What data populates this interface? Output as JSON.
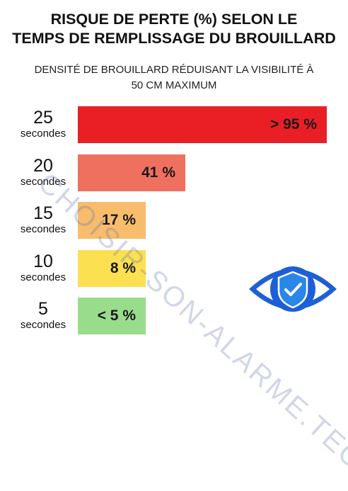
{
  "title_lines": [
    "RISQUE DE PERTE (%) SELON LE",
    "TEMPS DE REMPLISSAGE DU BROUILLARD"
  ],
  "subtitle_lines": [
    "DENSITÉ DE BROUILLARD RÉDUISANT LA VISIBILITÉ À",
    "50 CM MAXIMUM"
  ],
  "watermark": "CHOISIR-SON-ALARME.TECH",
  "chart_data": {
    "type": "bar",
    "orientation": "horizontal",
    "title": "RISQUE DE PERTE (%) SELON LE TEMPS DE REMPLISSAGE DU BROUILLARD",
    "subtitle": "DENSITÉ DE BROUILLARD RÉDUISANT LA VISIBILITÉ À 50 CM MAXIMUM",
    "unit": "secondes",
    "categories": [
      "25",
      "20",
      "15",
      "10",
      "5"
    ],
    "values": [
      95,
      41,
      17,
      8,
      5
    ],
    "value_labels": [
      "> 95 %",
      "41 %",
      "17 %",
      "8 %",
      "< 5 %"
    ],
    "colors": [
      "#ea1f26",
      "#f0705f",
      "#f8bc6d",
      "#fbe052",
      "#98dc8c"
    ],
    "grid": false,
    "legend": "none"
  },
  "colors": {
    "eye_blue": "#1d5fd6",
    "shield_blue": "#2a86e8"
  },
  "icons": [
    "eye-icon",
    "shield-check-icon"
  ]
}
